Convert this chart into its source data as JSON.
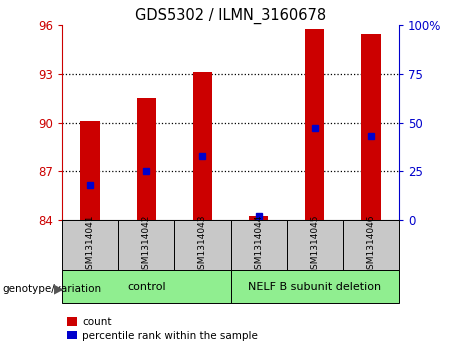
{
  "title": "GDS5302 / ILMN_3160678",
  "samples": [
    "GSM1314041",
    "GSM1314042",
    "GSM1314043",
    "GSM1314044",
    "GSM1314045",
    "GSM1314046"
  ],
  "counts": [
    90.1,
    91.5,
    93.1,
    84.2,
    95.8,
    95.5
  ],
  "percentile_ranks": [
    18,
    25,
    33,
    2,
    47,
    43
  ],
  "ymin": 84,
  "ymax": 96,
  "yticks": [
    84,
    87,
    90,
    93,
    96
  ],
  "right_ytick_vals": [
    0,
    25,
    50,
    75,
    100
  ],
  "right_ytick_labels": [
    "0",
    "25",
    "50",
    "75",
    "100%"
  ],
  "gridlines": [
    87,
    90,
    93
  ],
  "bar_color": "#CC0000",
  "percentile_color": "#0000CC",
  "bar_width": 0.35,
  "label_count": "count",
  "label_percentile": "percentile rank within the sample",
  "genotype_label": "genotype/variation",
  "group_labels": [
    "control",
    "NELF B subunit deletion"
  ],
  "group_starts": [
    0,
    3
  ],
  "group_ends": [
    3,
    6
  ],
  "group_color": "#90EE90",
  "sample_box_color": "#C8C8C8"
}
